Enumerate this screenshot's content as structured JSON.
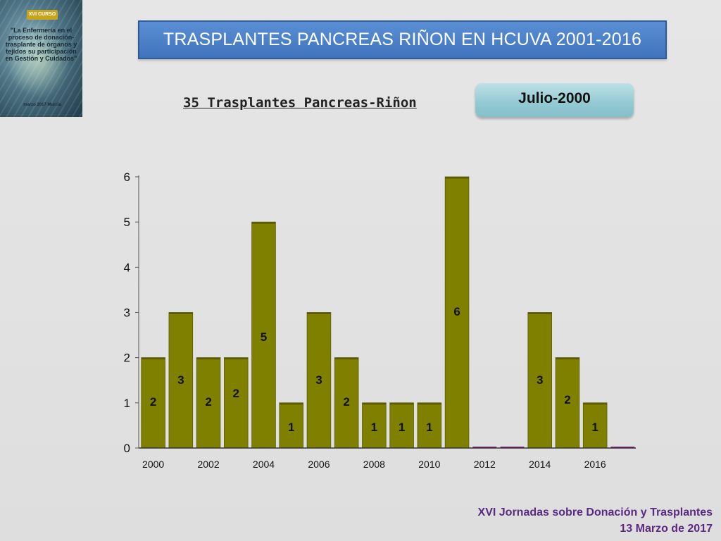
{
  "header": {
    "title": "TRASPLANTES PANCREAS RIÑON EN HCUVA 2001-2016",
    "date_button": "Julio-2000"
  },
  "cover": {
    "badge": "XVI CURSO",
    "text": "\"La Enfermería en el proceso de donación-trasplante de órganos y tejidos su participación en Gestión y Cuidados\"",
    "date": "marzo 2017 Murcia"
  },
  "chart_data": {
    "type": "bar",
    "title": "35 Trasplantes Pancreas-Riñon",
    "categories": [
      2000,
      2001,
      2002,
      2003,
      2004,
      2005,
      2006,
      2007,
      2008,
      2009,
      2010,
      2011,
      2012,
      2013,
      2014,
      2015,
      2016,
      2017
    ],
    "values": [
      2,
      3,
      2,
      2,
      5,
      1,
      3,
      2,
      1,
      1,
      1,
      6,
      0,
      0,
      3,
      2,
      1,
      0
    ],
    "labels": [
      "2",
      "3",
      "2",
      "2",
      "5",
      "1",
      "3",
      "2",
      "1",
      "1",
      "1",
      "6",
      "",
      "",
      "3",
      "2",
      "1",
      ""
    ],
    "x_tick_labels": [
      "2000",
      "2002",
      "2004",
      "2006",
      "2008",
      "2010",
      "2012",
      "2014",
      "2016"
    ],
    "y_ticks": [
      0,
      1,
      2,
      3,
      4,
      5,
      6
    ],
    "ylim": [
      0,
      6
    ],
    "xlabel": "",
    "ylabel": "",
    "bar_color": "#808000",
    "zero_bar_color": "#7a1f7a",
    "grid": false
  },
  "footer": {
    "line1": "XVI Jornadas sobre Donación y Trasplantes",
    "line2": "13 Marzo de 2017"
  }
}
